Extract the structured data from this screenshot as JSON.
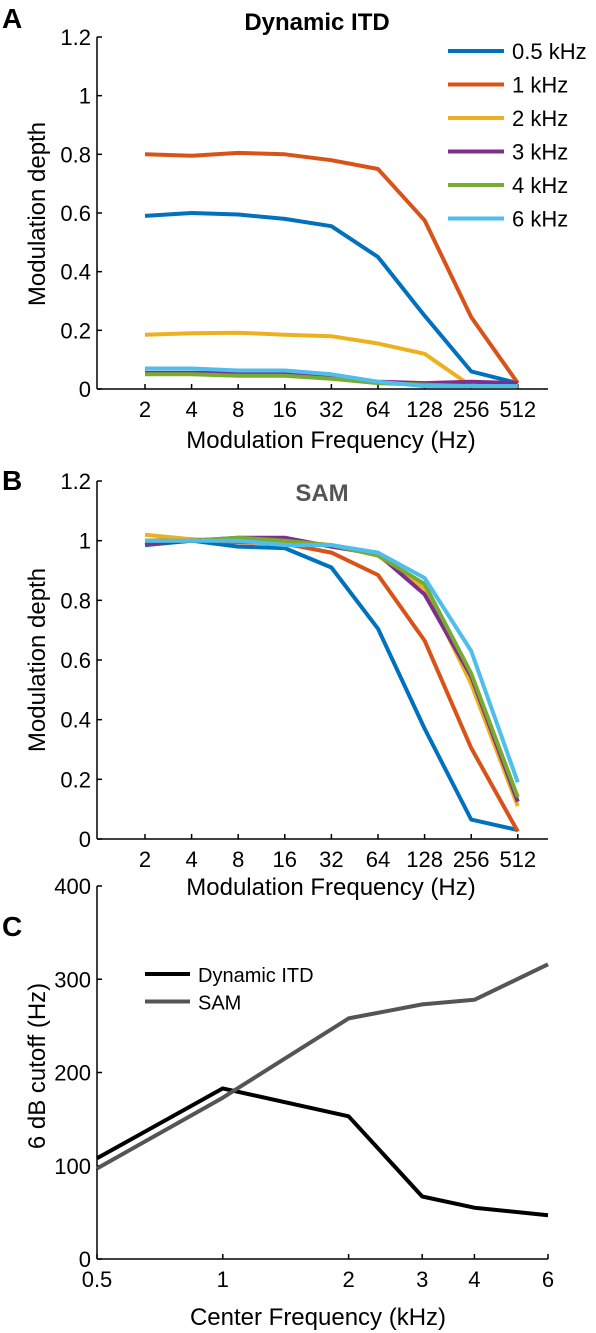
{
  "chart_data": [
    {
      "panel_label": "A",
      "type": "line",
      "title": "Dynamic ITD",
      "xlabel": "Modulation Frequency (Hz)",
      "ylabel": "Modulation depth",
      "x": [
        2,
        4,
        8,
        16,
        32,
        64,
        128,
        256,
        512
      ],
      "x_tick_labels": [
        "2",
        "4",
        "8",
        "16",
        "32",
        "64",
        "128",
        "256",
        "512"
      ],
      "x_scale": "log2",
      "ylim": [
        0,
        1.2
      ],
      "y_ticks": [
        0,
        0.2,
        0.4,
        0.6,
        0.8,
        1,
        1.2
      ],
      "y_tick_labels": [
        "0",
        "0.2",
        "0.4",
        "0.6",
        "0.8",
        "1",
        "1.2"
      ],
      "legend_position": "top-right",
      "grid": false,
      "series": [
        {
          "name": "0.5 kHz",
          "color": "#0072BD",
          "values": [
            0.59,
            0.6,
            0.595,
            0.58,
            0.555,
            0.45,
            0.25,
            0.06,
            0.02
          ]
        },
        {
          "name": "1 kHz",
          "color": "#D95319",
          "values": [
            0.8,
            0.795,
            0.805,
            0.8,
            0.78,
            0.75,
            0.575,
            0.245,
            0.02
          ]
        },
        {
          "name": "2 kHz",
          "color": "#EDB120",
          "values": [
            0.185,
            0.19,
            0.192,
            0.185,
            0.18,
            0.155,
            0.12,
            0.01,
            0.02
          ]
        },
        {
          "name": "3 kHz",
          "color": "#7E2F8E",
          "values": [
            0.055,
            0.055,
            0.055,
            0.05,
            0.04,
            0.025,
            0.02,
            0.025,
            0.02
          ]
        },
        {
          "name": "4 kHz",
          "color": "#77AC30",
          "values": [
            0.05,
            0.05,
            0.045,
            0.045,
            0.035,
            0.02,
            0.015,
            0.01,
            0.01
          ]
        },
        {
          "name": "6 kHz",
          "color": "#4DBEEE",
          "values": [
            0.07,
            0.07,
            0.063,
            0.063,
            0.05,
            0.025,
            0.01,
            0.01,
            0.01
          ]
        }
      ]
    },
    {
      "panel_label": "B",
      "type": "line",
      "title": "SAM",
      "xlabel": "Modulation Frequency (Hz)",
      "ylabel": "Modulation depth",
      "x": [
        2,
        4,
        8,
        16,
        32,
        64,
        128,
        256,
        512
      ],
      "x_tick_labels": [
        "2",
        "4",
        "8",
        "16",
        "32",
        "64",
        "128",
        "256",
        "512"
      ],
      "x_scale": "log2",
      "ylim": [
        0,
        1.2
      ],
      "y_ticks": [
        0,
        0.2,
        0.4,
        0.6,
        0.8,
        1,
        1.2
      ],
      "y_tick_labels": [
        "0",
        "0.2",
        "0.4",
        "0.6",
        "0.8",
        "1",
        "1.2"
      ],
      "grid": false,
      "series": [
        {
          "color": "#0072BD",
          "values": [
            0.985,
            1.0,
            0.98,
            0.975,
            0.91,
            0.705,
            0.37,
            0.065,
            0.03
          ]
        },
        {
          "color": "#D95319",
          "values": [
            1.0,
            1.005,
            0.995,
            0.99,
            0.96,
            0.885,
            0.665,
            0.305,
            0.025
          ]
        },
        {
          "color": "#EDB120",
          "values": [
            1.02,
            1.005,
            1.0,
            0.995,
            0.985,
            0.95,
            0.84,
            0.52,
            0.11
          ]
        },
        {
          "color": "#7E2F8E",
          "values": [
            0.99,
            1.0,
            1.01,
            1.01,
            0.98,
            0.955,
            0.82,
            0.545,
            0.125
          ]
        },
        {
          "color": "#77AC30",
          "values": [
            1.0,
            1.0,
            1.01,
            1.0,
            0.985,
            0.95,
            0.855,
            0.555,
            0.14
          ]
        },
        {
          "color": "#4DBEEE",
          "values": [
            1.0,
            1.0,
            1.0,
            0.985,
            0.985,
            0.96,
            0.875,
            0.63,
            0.19
          ]
        }
      ]
    },
    {
      "panel_label": "C",
      "type": "line",
      "title": "",
      "xlabel": "Center Frequency (kHz)",
      "ylabel": "6 dB cutoff (Hz)",
      "x": [
        0.5,
        1,
        2,
        3,
        4,
        6
      ],
      "x_tick_labels": [
        "0.5",
        "1",
        "2",
        "3",
        "4",
        "6"
      ],
      "x_scale": "log",
      "ylim": [
        0,
        400
      ],
      "y_ticks": [
        0,
        100,
        200,
        300,
        400
      ],
      "y_tick_labels": [
        "0",
        "100",
        "200",
        "300",
        "400"
      ],
      "legend_position": "top-left",
      "grid": false,
      "series": [
        {
          "name": "Dynamic ITD",
          "color": "#000000",
          "values": [
            108,
            183,
            153,
            67,
            55,
            47
          ]
        },
        {
          "name": "SAM",
          "color": "#555555",
          "values": [
            97,
            173,
            258,
            273,
            278,
            316
          ]
        }
      ]
    }
  ]
}
